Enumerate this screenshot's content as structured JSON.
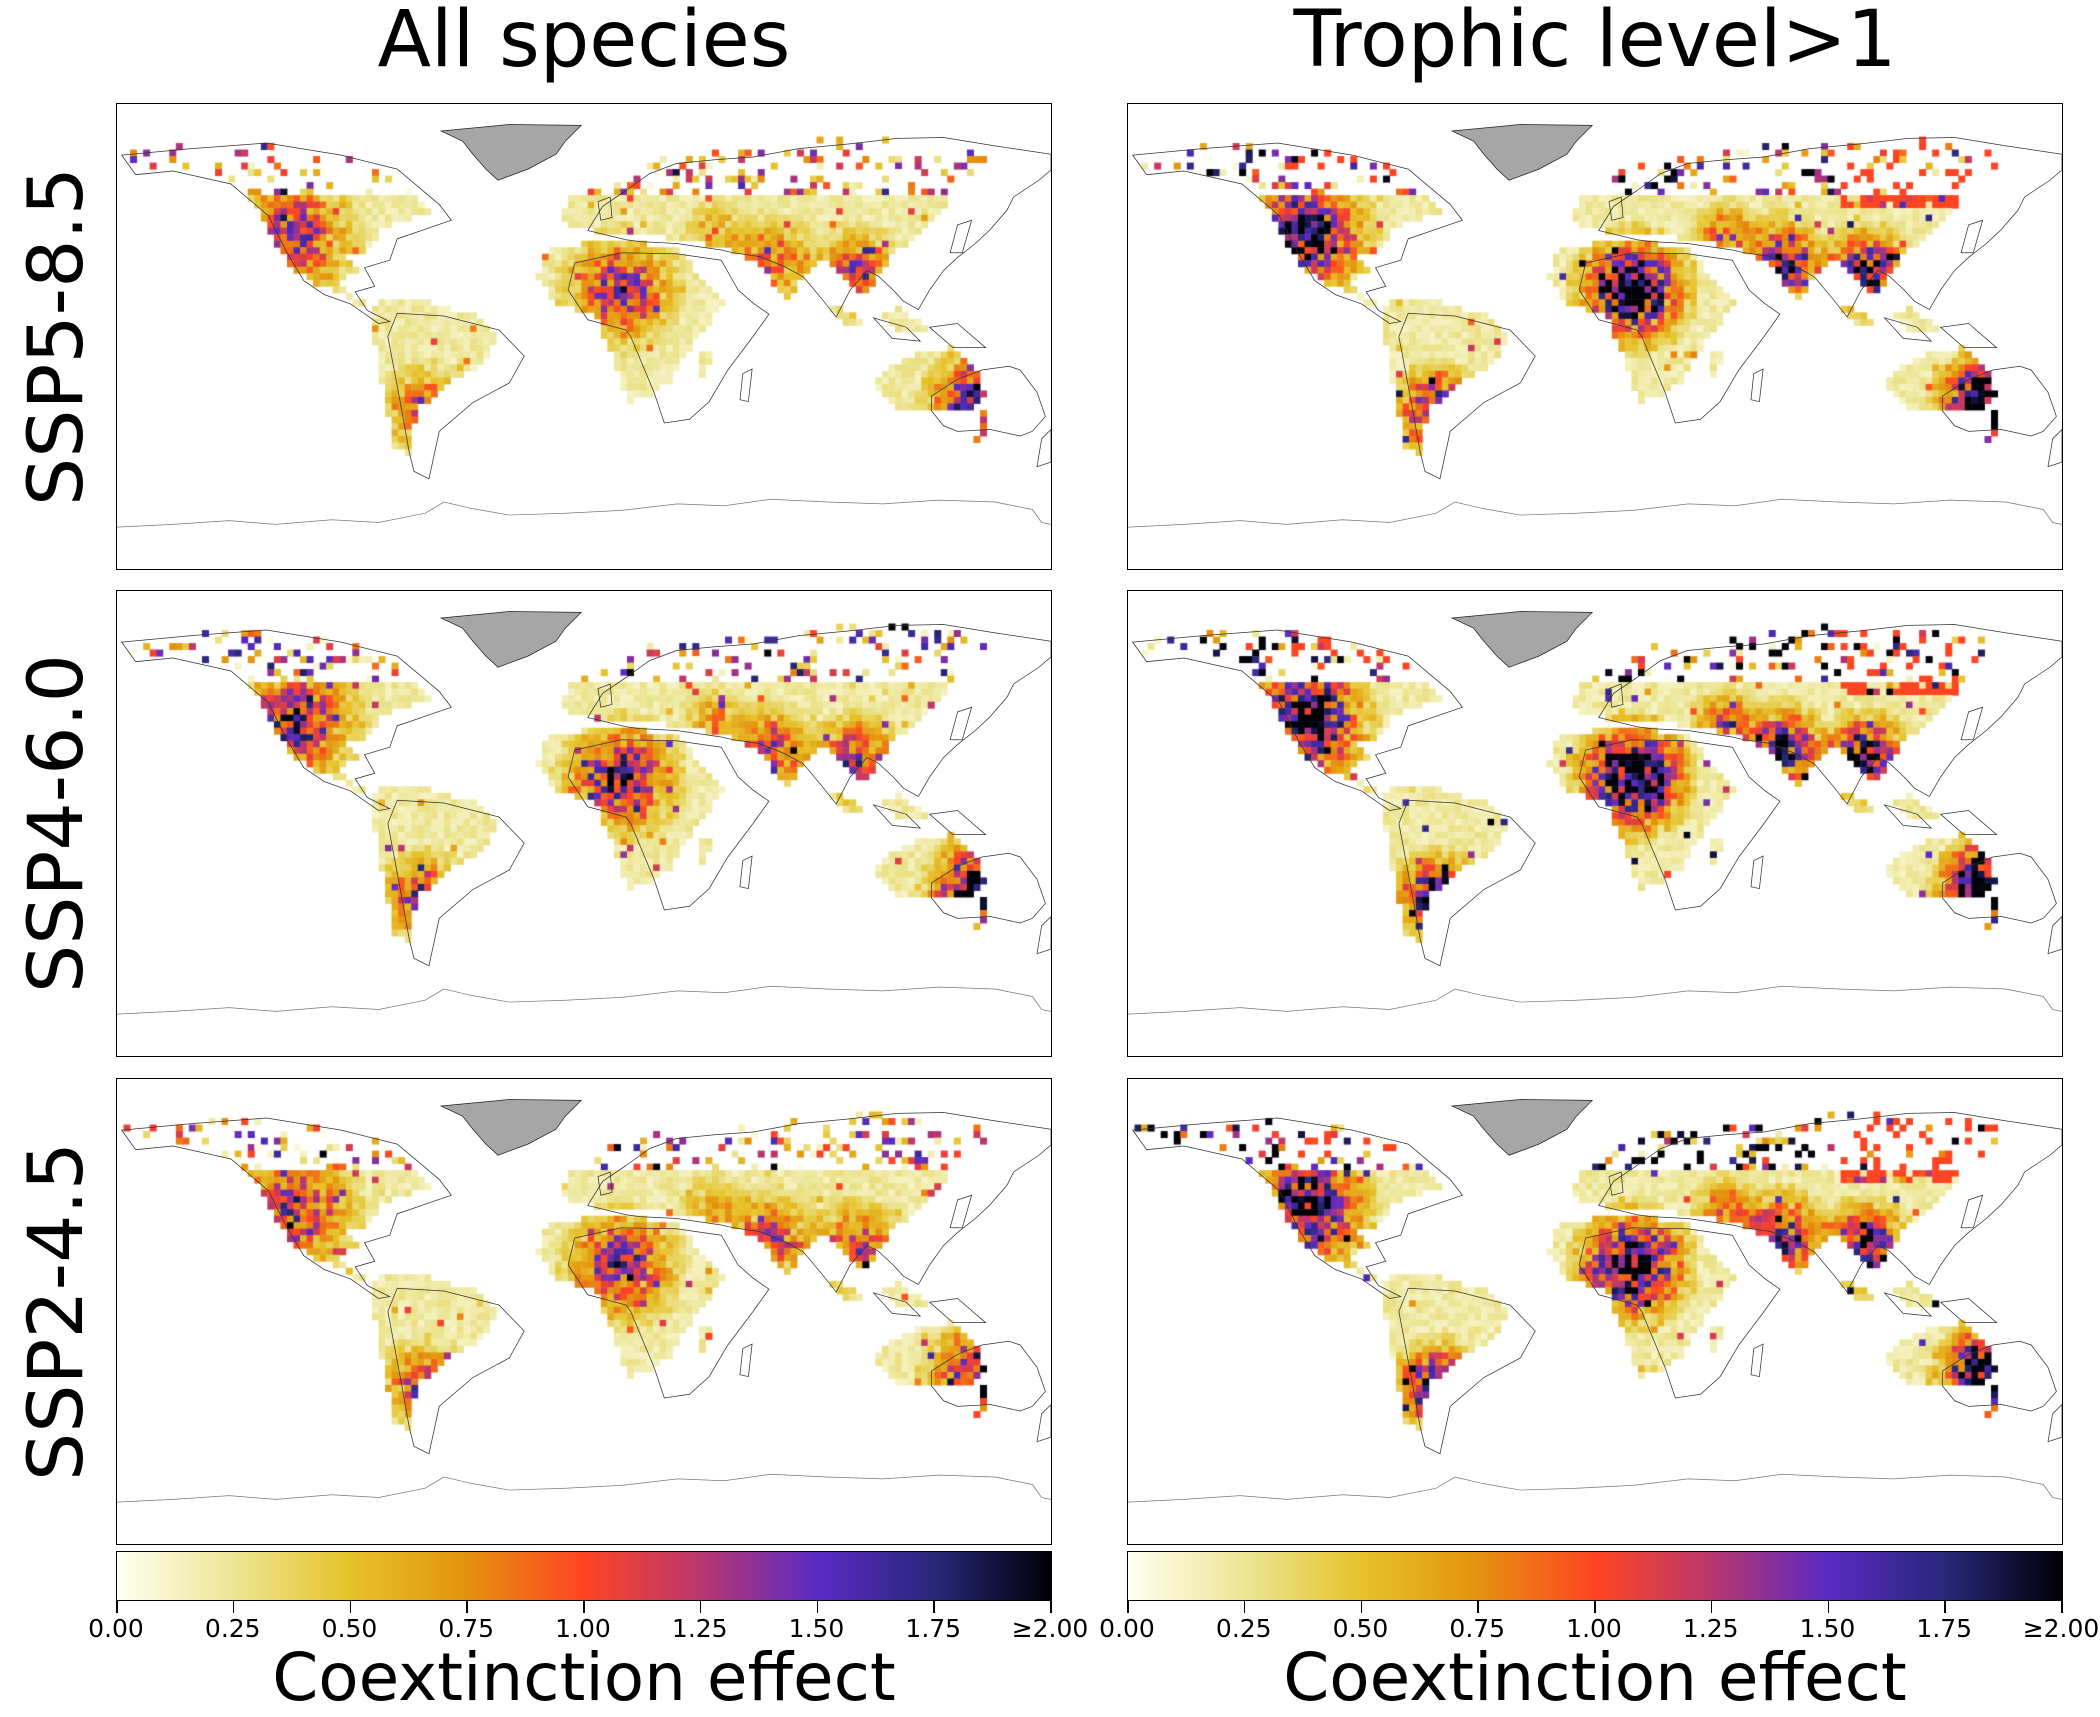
{
  "columns": [
    {
      "title": "All species"
    },
    {
      "title": "Trophic level>1"
    }
  ],
  "rows": [
    {
      "label": "SSP5-8.5"
    },
    {
      "label": "SSP4-6.0"
    },
    {
      "label": "SSP2-4.5"
    }
  ],
  "colorbar": {
    "label": "Coextinction effect",
    "ticks": [
      "0.00",
      "0.25",
      "0.50",
      "0.75",
      "1.00",
      "1.25",
      "1.50",
      "1.75",
      "≥2.00"
    ],
    "range": [
      0,
      2
    ],
    "colormap": [
      "#fffff2",
      "#ece594",
      "#e6c22a",
      "#e4920e",
      "#ff4422",
      "#b8366e",
      "#5a2ac4",
      "#28287a",
      "#000008"
    ]
  },
  "colors": {
    "no_data_greenland": "#a6a6a6",
    "coastline": "#333333"
  }
}
